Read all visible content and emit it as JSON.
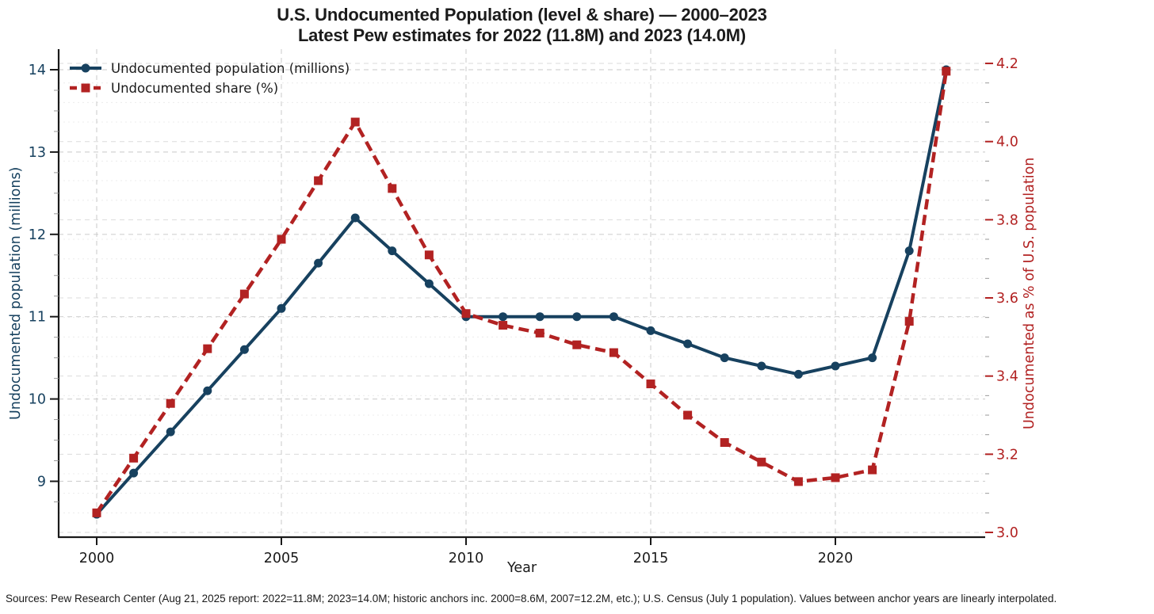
{
  "title": "U.S. Undocumented Population (level & share) — 2000–2023",
  "subtitle": "Latest Pew estimates for 2022 (11.8M) and 2023 (14.0M)",
  "footer": "Sources: Pew Research Center (Aug 21, 2025 report: 2022=11.8M; 2023=14.0M; historic anchors inc. 2000=8.6M, 2007=12.2M, etc.); U.S. Census (July 1 population). Values between anchor years are linearly interpolated.",
  "legend": [
    {
      "label": "Undocumented population (millions)"
    },
    {
      "label": "Undocumented share (%)"
    }
  ],
  "colors": {
    "population": "#17415f",
    "share": "#b22222",
    "x_text": "#1a1a1a",
    "grid": "#cccccc",
    "minor_grid": "#ececec",
    "spine": "#1a1a1a",
    "minor_tick": "#999999"
  },
  "chart_data": {
    "type": "line",
    "title": "U.S. Undocumented Population (level & share) — 2000–2023",
    "subtitle": "Latest Pew estimates for 2022 (11.8M) and 2023 (14.0M)",
    "xlabel": "Year",
    "ylabel_left": "Undocumented population (millions)",
    "ylabel_right": "Undocumented as % of U.S. population",
    "x": [
      2000,
      2001,
      2002,
      2003,
      2004,
      2005,
      2006,
      2007,
      2008,
      2009,
      2010,
      2011,
      2012,
      2013,
      2014,
      2015,
      2016,
      2017,
      2018,
      2019,
      2020,
      2021,
      2022,
      2023
    ],
    "series": [
      {
        "name": "Undocumented population (millions)",
        "axis": "left",
        "style": "solid",
        "marker": "circle",
        "color": "#17415f",
        "values": [
          8.6,
          9.1,
          9.6,
          10.1,
          10.6,
          11.1,
          11.65,
          12.2,
          11.8,
          11.4,
          11.0,
          11.0,
          11.0,
          11.0,
          11.0,
          10.83,
          10.67,
          10.5,
          10.4,
          10.3,
          10.4,
          10.5,
          11.8,
          14.0
        ]
      },
      {
        "name": "Undocumented share (%)",
        "axis": "right",
        "style": "dashed",
        "marker": "square",
        "color": "#b22222",
        "values": [
          3.05,
          3.19,
          3.33,
          3.47,
          3.61,
          3.75,
          3.9,
          4.05,
          3.88,
          3.71,
          3.56,
          3.53,
          3.51,
          3.48,
          3.46,
          3.38,
          3.3,
          3.23,
          3.18,
          3.13,
          3.14,
          3.16,
          3.54,
          4.18
        ]
      }
    ],
    "x_ticks": [
      2000,
      2005,
      2010,
      2015,
      2020
    ],
    "left_ticks": [
      9,
      10,
      11,
      12,
      13,
      14
    ],
    "right_ticks": [
      3.0,
      3.2,
      3.4,
      3.6,
      3.8,
      4.0,
      4.2
    ],
    "left_axis_range": [
      8.32,
      14.93
    ],
    "right_axis_range": [
      2.99,
      4.24
    ],
    "grid": true,
    "legend_position": "upper left"
  }
}
